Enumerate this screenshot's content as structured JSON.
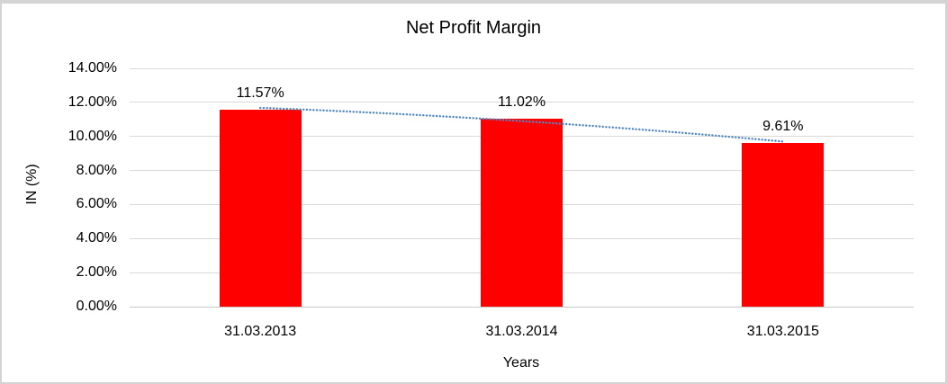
{
  "chart_data": {
    "type": "bar",
    "title": "Net Profit Margin",
    "xlabel": "Years",
    "ylabel": "IN (%)",
    "categories": [
      "31.03.2013",
      "31.03.2014",
      "31.03.2015"
    ],
    "series": [
      {
        "name": "Net Profit Margin",
        "values": [
          11.57,
          11.02,
          9.61
        ],
        "labels": [
          "11.57%",
          "11.02%",
          "9.61%"
        ],
        "color": "#ff0000"
      }
    ],
    "y_ticks": [
      {
        "value": 14,
        "label": "14.00%"
      },
      {
        "value": 12,
        "label": "12.00%"
      },
      {
        "value": 10,
        "label": "10.00%"
      },
      {
        "value": 8,
        "label": "8.00%"
      },
      {
        "value": 6,
        "label": "6.00%"
      },
      {
        "value": 4,
        "label": "4.00%"
      },
      {
        "value": 2,
        "label": "2.00%"
      },
      {
        "value": 0,
        "label": "0.00%"
      }
    ],
    "ylim": [
      0,
      14
    ],
    "grid": true,
    "legend": "none",
    "trendline": {
      "style": "dotted",
      "color": "#4e86c8",
      "values": [
        11.68,
        10.9,
        9.7
      ]
    },
    "colors": {
      "bar": "#ff0000",
      "grid": "#d9d9d9",
      "axis_line": "#c8c8c8",
      "text": "#000000",
      "background": "#ffffff",
      "frame_border": "#d4d4d4"
    }
  }
}
